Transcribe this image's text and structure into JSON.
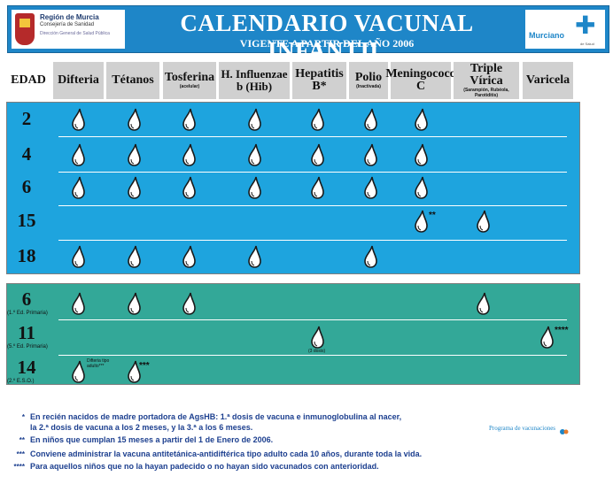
{
  "header": {
    "logo_left": {
      "line1": "Región de Murcia",
      "line2": "Consejería de Sanidad",
      "line3": "Dirección General de Salud Pública"
    },
    "title": "CALENDARIO VACUNAL INFANTIL",
    "subtitle": "VIGENTE A PARTIR DEL AÑO 2006",
    "logo_right": {
      "name": "Murciano",
      "sub": "de Salud"
    }
  },
  "columns": [
    {
      "label": "EDAD",
      "sub": ""
    },
    {
      "label": "Difteria",
      "sub": ""
    },
    {
      "label": "Tétanos",
      "sub": ""
    },
    {
      "label": "Tosferina",
      "sub": "(acelular)"
    },
    {
      "label": "H. Influenzae b (Hib)",
      "sub": ""
    },
    {
      "label": "Hepatitis B*",
      "sub": ""
    },
    {
      "label": "Polio",
      "sub": "(Inactivada)"
    },
    {
      "label": "Meningococo C",
      "sub": ""
    },
    {
      "label": "Triple Vírica",
      "sub": "(Sarampión, Rubéola, Parotiditis)"
    },
    {
      "label": "Varicela",
      "sub": ""
    }
  ],
  "rows_infant": [
    {
      "age": "2",
      "doses": [
        1,
        1,
        1,
        1,
        1,
        1,
        1,
        0,
        0
      ],
      "notes": {}
    },
    {
      "age": "4",
      "doses": [
        1,
        1,
        1,
        1,
        1,
        1,
        1,
        0,
        0
      ],
      "notes": {}
    },
    {
      "age": "6",
      "doses": [
        1,
        1,
        1,
        1,
        1,
        1,
        1,
        0,
        0
      ],
      "notes": {}
    },
    {
      "age": "15",
      "doses": [
        0,
        0,
        0,
        0,
        0,
        0,
        1,
        1,
        0
      ],
      "notes": {
        "6": "**"
      }
    },
    {
      "age": "18",
      "doses": [
        1,
        1,
        1,
        1,
        0,
        1,
        0,
        0,
        0
      ],
      "notes": {}
    }
  ],
  "rows_school": [
    {
      "age": "6",
      "age_sub": "(1.º Ed. Primaria)",
      "doses": [
        1,
        1,
        1,
        0,
        0,
        0,
        0,
        1,
        0
      ]
    },
    {
      "age": "11",
      "age_sub": "(5.º Ed. Primaria)",
      "doses": [
        0,
        0,
        0,
        0,
        1,
        0,
        0,
        0,
        1
      ]
    },
    {
      "age": "14",
      "age_sub": "(2.º E.S.O.)",
      "doses": [
        1,
        1,
        0,
        0,
        0,
        0,
        0,
        0,
        0
      ]
    }
  ],
  "cell_notes": {
    "hep_b_3_dosis": "(3 dosis)",
    "varicela_mark": "****",
    "td_label": "Difteria tipo adulto***",
    "td_mark": "***",
    "men_mark": "**"
  },
  "footnotes": [
    {
      "mark": "*",
      "text": "En recién nacidos de madre portadora de AgsHB: 1.ª dosis de vacuna e inmunoglobulina al nacer,"
    },
    {
      "mark": "",
      "text": "la 2.ª dosis de vacuna a los 2 meses, y la 3.ª a los 6 meses."
    },
    {
      "mark": "**",
      "text": "En niños que cumplan 15 meses a partir del 1 de Enero de 2006."
    },
    {
      "mark": "***",
      "text": "Conviene administrar la vacuna antitetánica-antidiftérica tipo adulto cada 10 años, durante toda la vida."
    },
    {
      "mark": "****",
      "text": "Para aquellos niños que no la hayan padecido o no hayan sido vacunados con anterioridad."
    }
  ],
  "program_label": "Programa de vacunaciones",
  "colors": {
    "header_blue": "#1e86c8",
    "infant_block": "#1ea4de",
    "school_block": "#33a898",
    "column_header_gray": "#d0d0d0",
    "footnote_text": "#1c3f8f"
  },
  "icons": {
    "dose": "drop-icon"
  }
}
